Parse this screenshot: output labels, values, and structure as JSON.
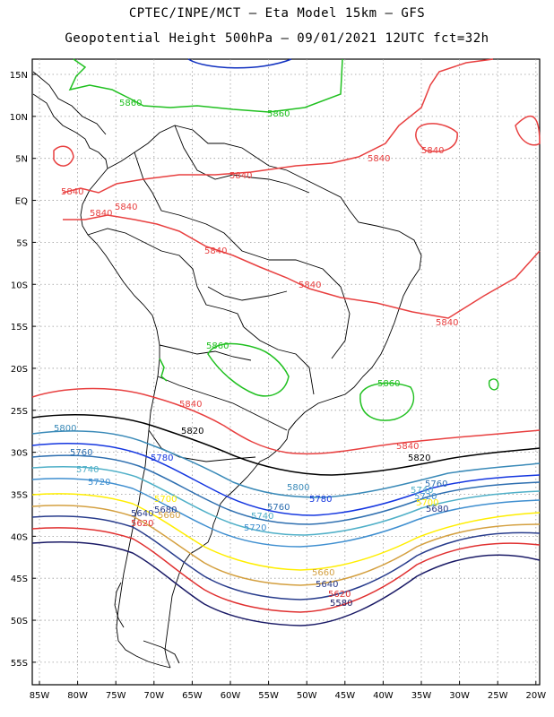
{
  "header": {
    "title_line1": "CPTEC/INPE/MCT –  Eta Model 15km – GFS",
    "title_line2": "Geopotential Height 500hPa – 09/01/2021 12UTC fct=32h"
  },
  "map": {
    "lon_ticks": [
      "85W",
      "80W",
      "75W",
      "70W",
      "65W",
      "60W",
      "55W",
      "50W",
      "45W",
      "40W",
      "35W",
      "30W",
      "25W",
      "20W"
    ],
    "lat_ticks": [
      "15N",
      "10N",
      "5N",
      "EQ",
      "5S",
      "10S",
      "15S",
      "20S",
      "25S",
      "30S",
      "35S",
      "40S",
      "45S",
      "50S",
      "55S"
    ],
    "colors": {
      "c5580": "#1a1a66",
      "c5620": "#e03030",
      "c5640": "#283c8c",
      "c5660": "#d4a040",
      "c5700": "#ffee00",
      "c5720": "#3f8fd0",
      "c5740": "#50b0c8",
      "c5760": "#2e6fb0",
      "c5780": "#1436e0",
      "c5800": "#3a8ab8",
      "c5820": "#000000",
      "c5840": "#e84040",
      "c5860": "#20c020",
      "c5880": "#1030c0"
    },
    "contour_labels": {
      "l5860": "5860",
      "l5840": "5840",
      "l5820": "5820",
      "l5800": "5800",
      "l5780": "5780",
      "l5760": "5760",
      "l5740": "5740",
      "l5720": "5720",
      "l5700": "5700",
      "l5680": "5680",
      "l5660": "5660",
      "l5640": "5640",
      "l5620": "5620",
      "l5580": "5580"
    }
  }
}
